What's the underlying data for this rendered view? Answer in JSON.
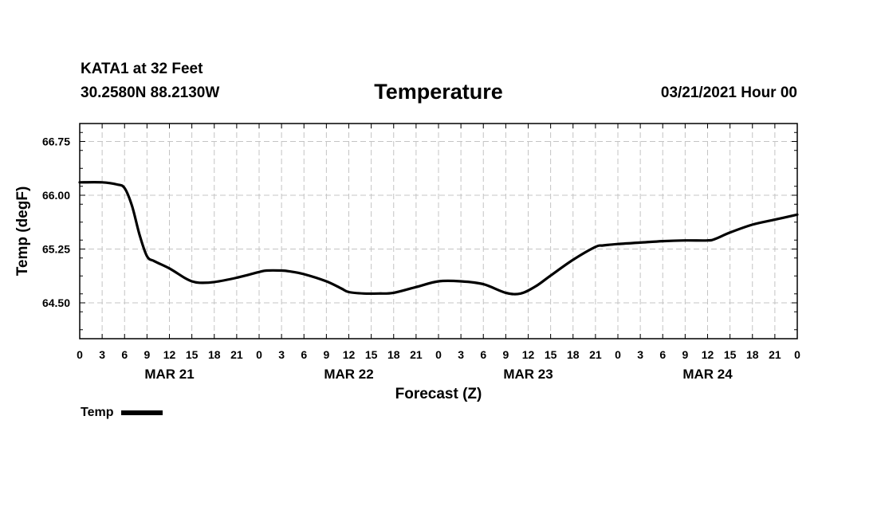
{
  "header": {
    "station": "KATA1 at 32 Feet",
    "coords": "30.2580N 88.2130W",
    "title": "Temperature",
    "datetime": "03/21/2021 Hour 00"
  },
  "legend": {
    "label": "Temp",
    "color": "#000000"
  },
  "chart_data": {
    "type": "line",
    "title": "Temperature",
    "xlabel": "Forecast (Z)",
    "ylabel": "Temp (degF)",
    "ylim": [
      64.0,
      67.0
    ],
    "yticks": [
      64.5,
      65.25,
      66.0,
      66.75
    ],
    "ytick_labels": [
      "64.50",
      "65.25",
      "66.00",
      "66.75"
    ],
    "xlim": [
      0,
      96
    ],
    "x_unit": "hours since 03/21/2021 00Z",
    "xticks": [
      0,
      3,
      6,
      9,
      12,
      15,
      18,
      21,
      24,
      27,
      30,
      33,
      36,
      39,
      42,
      45,
      48,
      51,
      54,
      57,
      60,
      63,
      66,
      69,
      72,
      75,
      78,
      81,
      84,
      87,
      90,
      93,
      96
    ],
    "xtick_labels": [
      "0",
      "3",
      "6",
      "9",
      "12",
      "15",
      "18",
      "21",
      "0",
      "3",
      "6",
      "9",
      "12",
      "15",
      "18",
      "21",
      "0",
      "3",
      "6",
      "9",
      "12",
      "15",
      "18",
      "21",
      "0",
      "3",
      "6",
      "9",
      "12",
      "15",
      "18",
      "21",
      "0"
    ],
    "day_labels": [
      {
        "label": "MAR 21",
        "x": 12
      },
      {
        "label": "MAR 22",
        "x": 36
      },
      {
        "label": "MAR 23",
        "x": 60
      },
      {
        "label": "MAR 24",
        "x": 84
      }
    ],
    "grid": true,
    "series": [
      {
        "name": "Temp",
        "color": "#000000",
        "x": [
          0,
          3,
          5,
          6,
          7,
          8,
          9,
          10,
          12,
          14,
          15,
          16,
          18,
          21,
          24,
          25,
          27,
          28,
          30,
          33,
          35,
          36,
          38,
          40,
          42,
          45,
          48,
          51,
          54,
          57,
          59,
          61,
          63,
          66,
          69,
          70,
          72,
          75,
          78,
          81,
          84,
          85,
          87,
          90,
          93,
          96
        ],
        "y": [
          66.18,
          66.18,
          66.15,
          66.1,
          65.85,
          65.45,
          65.15,
          65.08,
          64.98,
          64.85,
          64.8,
          64.78,
          64.79,
          64.85,
          64.93,
          64.95,
          64.95,
          64.94,
          64.9,
          64.8,
          64.7,
          64.65,
          64.63,
          64.63,
          64.64,
          64.72,
          64.8,
          64.8,
          64.76,
          64.64,
          64.63,
          64.73,
          64.88,
          65.1,
          65.28,
          65.3,
          65.32,
          65.34,
          65.36,
          65.37,
          65.37,
          65.39,
          65.48,
          65.59,
          65.66,
          65.73
        ]
      }
    ]
  }
}
